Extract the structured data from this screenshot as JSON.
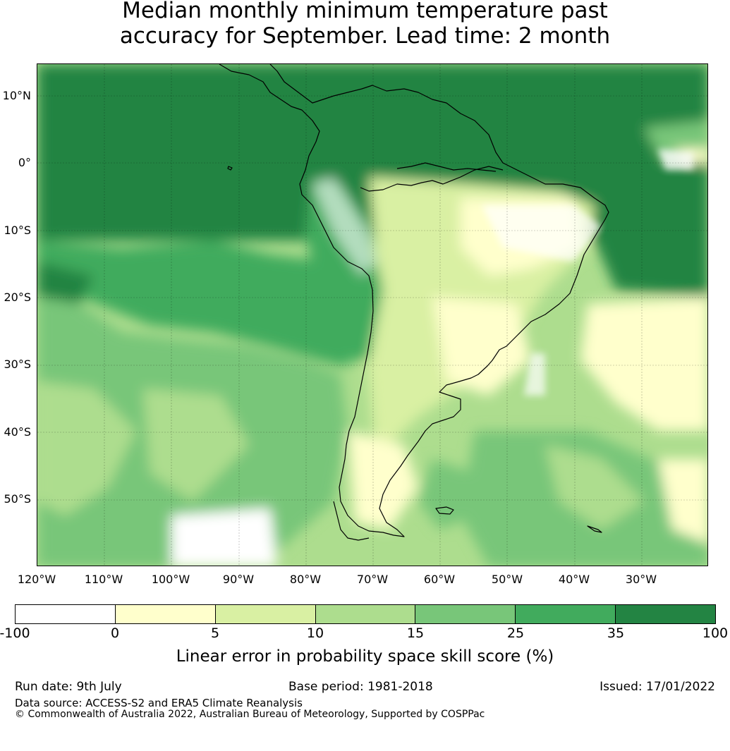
{
  "title_line1": "Median monthly minimum temperature past",
  "title_line2": "accuracy for September. Lead time: 2 month",
  "lat_labels": [
    "10°N",
    "0°",
    "10°S",
    "20°S",
    "30°S",
    "40°S",
    "50°S"
  ],
  "lon_labels": [
    "120°W",
    "110°W",
    "100°W",
    "90°W",
    "80°W",
    "70°W",
    "60°W",
    "50°W",
    "40°W",
    "30°W"
  ],
  "colorbar": {
    "ticks": [
      "-100",
      "0",
      "5",
      "10",
      "15",
      "25",
      "35",
      "100"
    ],
    "colors": [
      "#ffffff",
      "#ffffcc",
      "#d9f0a3",
      "#addd8e",
      "#78c679",
      "#41ab5d",
      "#238443"
    ],
    "label": "Linear error in probability space skill score (%)"
  },
  "run_date": "Run date: 9th July",
  "base_period": "Base period: 1981-2018",
  "issued": "Issued: 17/01/2022",
  "data_source": "Data source: ACCESS-S2 and ERA5 Climate Reanalysis",
  "copyright": "© Commonwealth of Australia 2022, Australian Bureau of Meteorology, Supported by COSPPac"
}
